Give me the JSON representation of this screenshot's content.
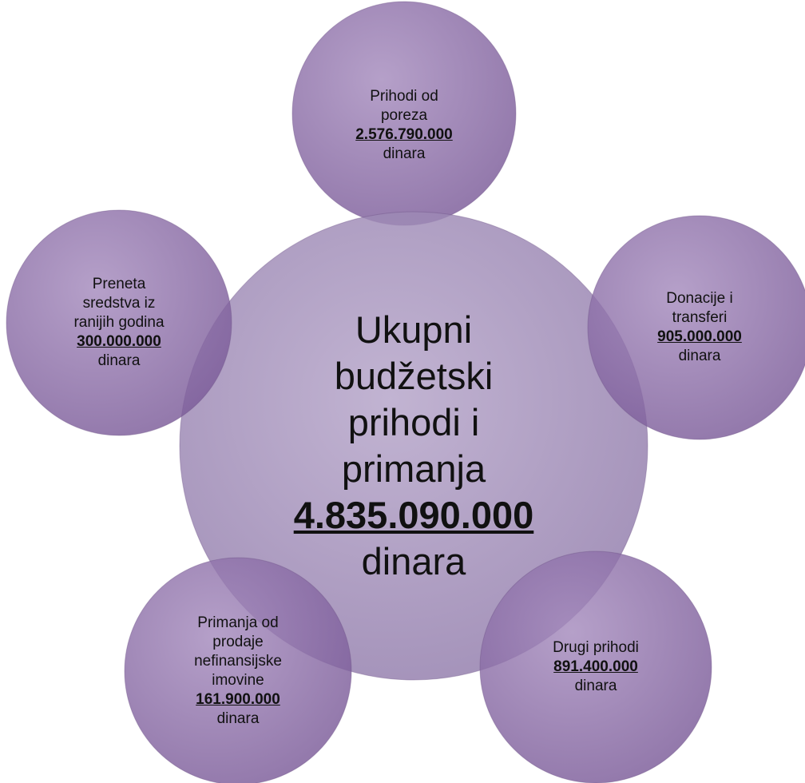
{
  "center": {
    "lines": [
      "Ukupni",
      "budžetski",
      "prihodi i",
      "primanja"
    ],
    "amount": "4.835.090.000",
    "unit": "dinara"
  },
  "nodes": [
    {
      "lines": [
        "Prihodi od",
        "poreza"
      ],
      "amount": "2.576.790.000",
      "unit": "dinara"
    },
    {
      "lines": [
        "Donacije i",
        "transferi"
      ],
      "amount": "905.000.000",
      "unit": "dinara"
    },
    {
      "lines": [
        "Drugi prihodi"
      ],
      "amount": "891.400.000",
      "unit": "dinara"
    },
    {
      "lines": [
        "Primanja od",
        "prodaje",
        "nefinansijske",
        "imovine"
      ],
      "amount": "161.900.000",
      "unit": "dinara"
    },
    {
      "lines": [
        "Preneta",
        "sredstva iz",
        "ranijih godina"
      ],
      "amount": "300.000.000",
      "unit": "dinara"
    }
  ]
}
